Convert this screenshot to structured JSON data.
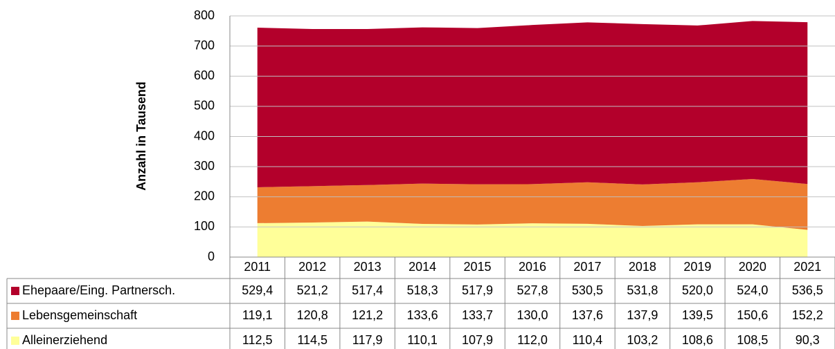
{
  "chart_data": {
    "type": "area",
    "stacked": true,
    "ylabel": "Anzahl in Tausend",
    "categories": [
      "2011",
      "2012",
      "2013",
      "2014",
      "2015",
      "2016",
      "2017",
      "2018",
      "2019",
      "2020",
      "2021"
    ],
    "series": [
      {
        "name": "Ehepaare/Eing. Partnersch.",
        "color": "#b3002b",
        "values": [
          529.4,
          521.2,
          517.4,
          518.3,
          517.9,
          527.8,
          530.5,
          531.8,
          520.0,
          524.0,
          536.5
        ],
        "value_labels": [
          "529,4",
          "521,2",
          "517,4",
          "518,3",
          "517,9",
          "527,8",
          "530,5",
          "531,8",
          "520,0",
          "524,0",
          "536,5"
        ]
      },
      {
        "name": "Lebensgemeinschaft",
        "color": "#ed7d31",
        "values": [
          119.1,
          120.8,
          121.2,
          133.6,
          133.7,
          130.0,
          137.6,
          137.9,
          139.5,
          150.6,
          152.2
        ],
        "value_labels": [
          "119,1",
          "120,8",
          "121,2",
          "133,6",
          "133,7",
          "130,0",
          "137,6",
          "137,9",
          "139,5",
          "150,6",
          "152,2"
        ]
      },
      {
        "name": "Alleinerziehend",
        "color": "#ffff99",
        "values": [
          112.5,
          114.5,
          117.9,
          110.1,
          107.9,
          112.0,
          110.4,
          103.2,
          108.6,
          108.5,
          90.3
        ],
        "value_labels": [
          "112,5",
          "114,5",
          "117,9",
          "110,1",
          "107,9",
          "112,0",
          "110,4",
          "103,2",
          "108,6",
          "108,5",
          "90,3"
        ]
      }
    ],
    "ylim": [
      0,
      800
    ],
    "yticks": [
      0,
      100,
      200,
      300,
      400,
      500,
      600,
      700,
      800
    ],
    "grid": true
  }
}
